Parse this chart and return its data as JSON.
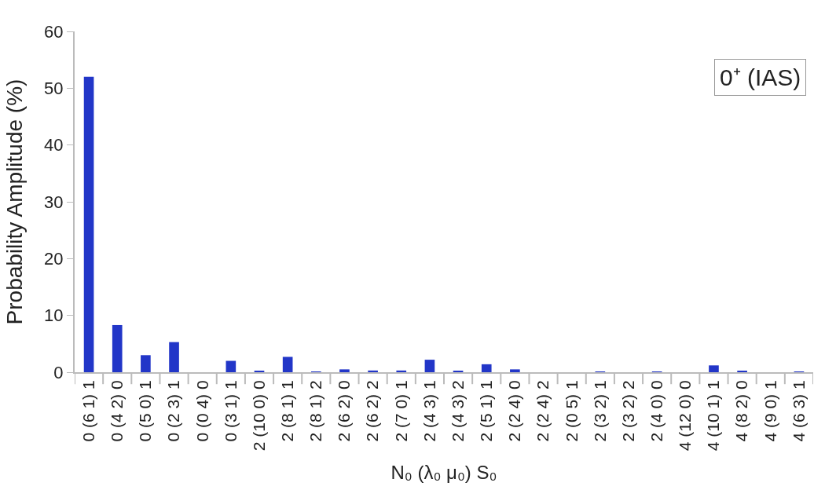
{
  "chart_data": {
    "type": "bar",
    "xlabel": "N₀ (λ₀ μ₀) S₀",
    "ylabel": "Probability Amplitude (%)",
    "annotations": [
      "0⁺ (IAS)"
    ],
    "categories": [
      "0 (6 1) 1",
      "0 (4 2) 0",
      "0 (5 0) 1",
      "0 (2 3) 1",
      "0 (0 4) 0",
      "0 (3 1) 1",
      "2 (10 0) 0",
      "2 (8 1) 1",
      "2 (8 1) 2",
      "2 (6 2) 0",
      "2 (6 2) 2",
      "2 (7 0) 1",
      "2 (4 3) 1",
      "2 (4 3) 2",
      "2 (5 1) 1",
      "2 (2 4) 0",
      "2 (2 4) 2",
      "2 (0 5) 1",
      "2 (3 2) 1",
      "2 (3 2) 2",
      "2 (4 0) 0",
      "4 (12 0) 0",
      "4 (10 1) 1",
      "4 (8 2) 0",
      "4 (9 0) 1",
      "4 (6 3) 1"
    ],
    "values": [
      52,
      8.3,
      3,
      5.3,
      0,
      2,
      0.2,
      2.7,
      0.1,
      0.5,
      0.3,
      0.3,
      2.2,
      0.2,
      1.4,
      0.5,
      0,
      0,
      0.1,
      0,
      0.1,
      0,
      1.2,
      0.2,
      0,
      0.1
    ],
    "color": "#2236c8",
    "ylim": [
      0,
      60
    ],
    "yticks": [
      0,
      10,
      20,
      30,
      40,
      50,
      60
    ],
    "grid": false
  }
}
